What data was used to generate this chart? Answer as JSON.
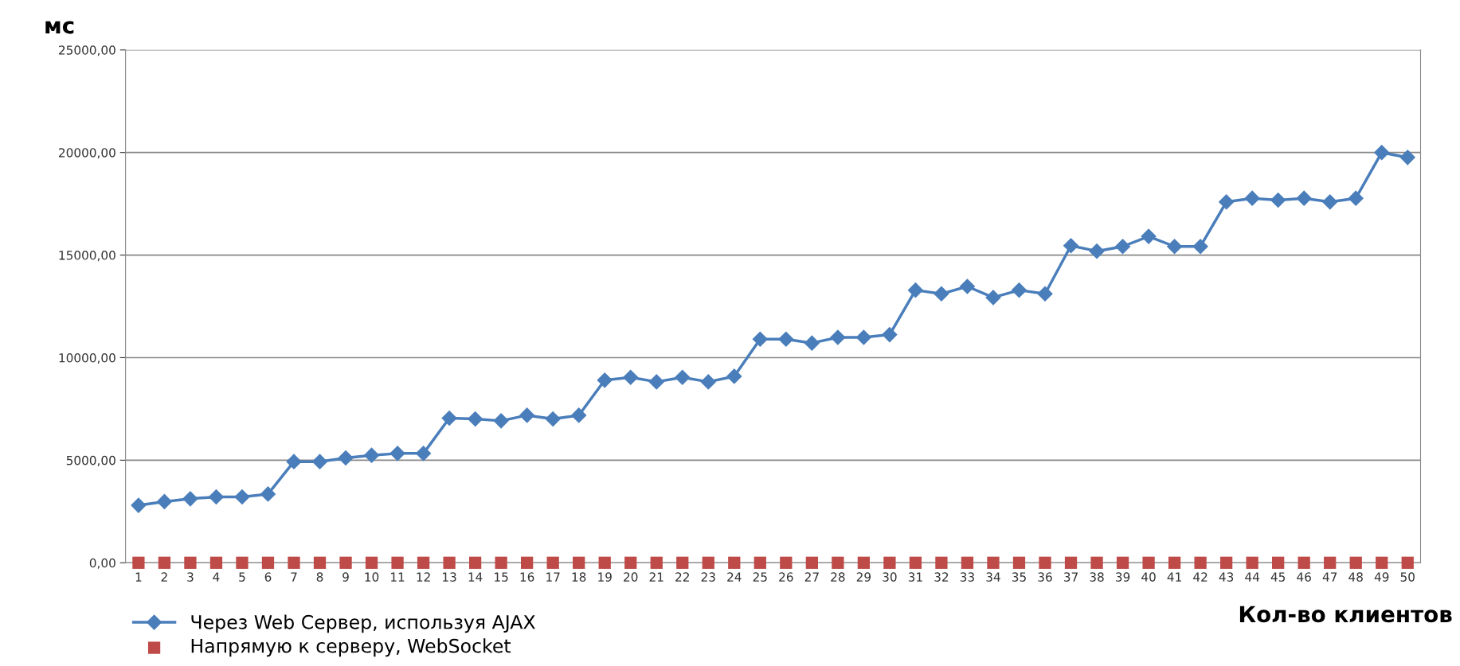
{
  "chart_data": {
    "type": "line",
    "ylabel": "мс",
    "xlabel": "Кол-во клиентов",
    "categories": [
      "1",
      "2",
      "3",
      "4",
      "5",
      "6",
      "7",
      "8",
      "9",
      "10",
      "11",
      "12",
      "13",
      "14",
      "15",
      "16",
      "17",
      "18",
      "19",
      "20",
      "21",
      "22",
      "23",
      "24",
      "25",
      "26",
      "27",
      "28",
      "29",
      "30",
      "31",
      "32",
      "33",
      "34",
      "35",
      "36",
      "37",
      "38",
      "39",
      "40",
      "41",
      "42",
      "43",
      "44",
      "45",
      "46",
      "47",
      "48",
      "49",
      "50"
    ],
    "series": [
      {
        "name": "Через Web Сервер, используя AJAX",
        "color": "#4a7ebb",
        "marker": "diamond",
        "values": [
          2800,
          2980,
          3120,
          3210,
          3210,
          3350,
          4930,
          4930,
          5110,
          5240,
          5330,
          5330,
          7050,
          7010,
          6920,
          7190,
          7010,
          7190,
          8900,
          9040,
          8820,
          9040,
          8820,
          9090,
          10900,
          10900,
          10710,
          10990,
          10990,
          11120,
          13290,
          13110,
          13470,
          12930,
          13290,
          13110,
          15460,
          15190,
          15420,
          15910,
          15420,
          15420,
          17590,
          17770,
          17680,
          17770,
          17590,
          17770,
          20000,
          19760
        ]
      },
      {
        "name": "Напрямую к серверу, WebSocket",
        "type": "scatter",
        "color": "#be4b48",
        "marker": "square",
        "values": [
          0,
          0,
          0,
          0,
          0,
          0,
          0,
          0,
          0,
          0,
          0,
          0,
          0,
          0,
          0,
          0,
          0,
          0,
          0,
          0,
          0,
          0,
          0,
          0,
          0,
          0,
          0,
          0,
          0,
          0,
          0,
          0,
          0,
          0,
          0,
          0,
          0,
          0,
          0,
          0,
          0,
          0,
          0,
          0,
          0,
          0,
          0,
          0,
          0,
          0
        ]
      }
    ],
    "ylim": [
      0,
      25000
    ],
    "yticks": [
      {
        "value": 0,
        "label": "0,00"
      },
      {
        "value": 5000,
        "label": "5000,00"
      },
      {
        "value": 10000,
        "label": "10000,00"
      },
      {
        "value": 15000,
        "label": "15000,00"
      },
      {
        "value": 20000,
        "label": "20000,00"
      },
      {
        "value": 25000,
        "label": "25000,00"
      }
    ],
    "grid": "y",
    "legend": "bottom left"
  }
}
